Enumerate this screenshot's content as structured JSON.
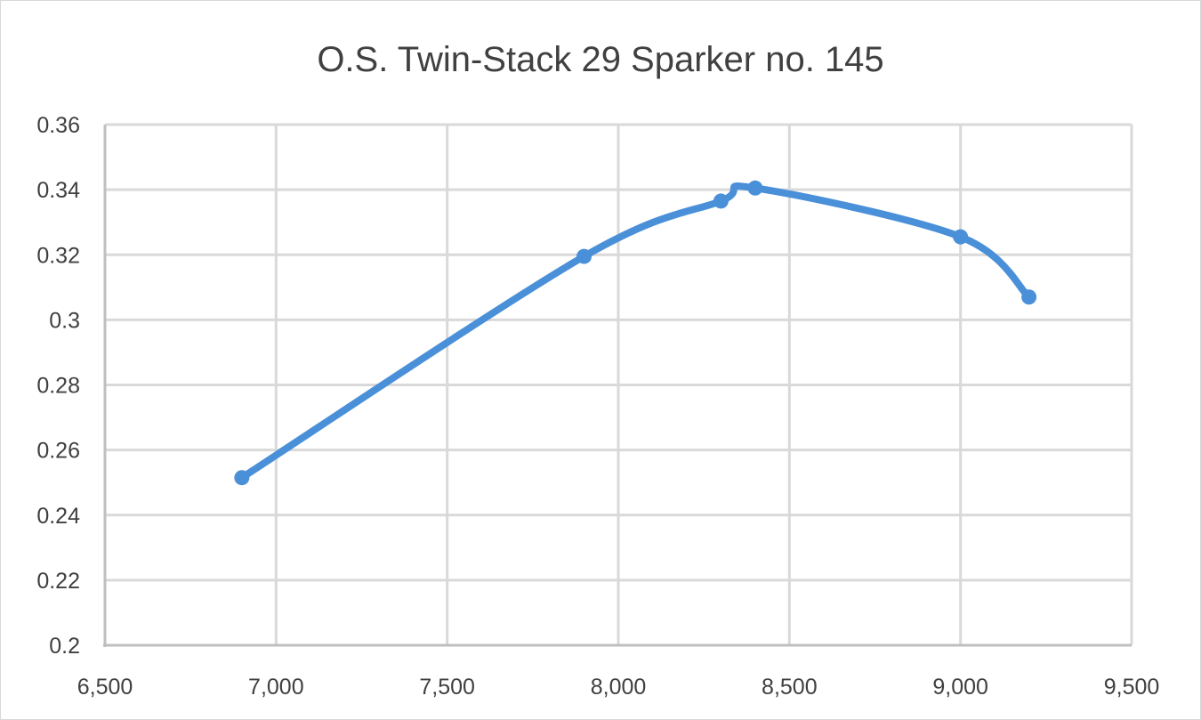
{
  "chart_data": {
    "type": "scatter",
    "title": "O.S. Twin-Stack 29 Sparker no. 145",
    "xlabel": "",
    "ylabel": "",
    "xlim": [
      6500,
      9500
    ],
    "ylim": [
      0.2,
      0.36
    ],
    "x_ticks": [
      6500,
      7000,
      7500,
      8000,
      8500,
      9000,
      9500
    ],
    "x_tick_labels": [
      "6,500",
      "7,000",
      "7,500",
      "8,000",
      "8,500",
      "9,000",
      "9,500"
    ],
    "y_ticks": [
      0.2,
      0.22,
      0.24,
      0.26,
      0.28,
      0.3,
      0.32,
      0.34,
      0.36
    ],
    "y_tick_labels": [
      "0.2",
      "0.22",
      "0.24",
      "0.26",
      "0.28",
      "0.3",
      "0.32",
      "0.34",
      "0.36"
    ],
    "grid": true,
    "legend": "none",
    "smooth": true,
    "series": [
      {
        "color": "#4a90d9",
        "x": [
          6900,
          7900,
          8300,
          8400,
          9000,
          9200
        ],
        "y": [
          0.2515,
          0.3195,
          0.3365,
          0.3405,
          0.3255,
          0.307
        ]
      }
    ]
  },
  "colors": {
    "grid": "#d9d9d9",
    "axis": "#bfbfbf",
    "text": "#404040"
  }
}
